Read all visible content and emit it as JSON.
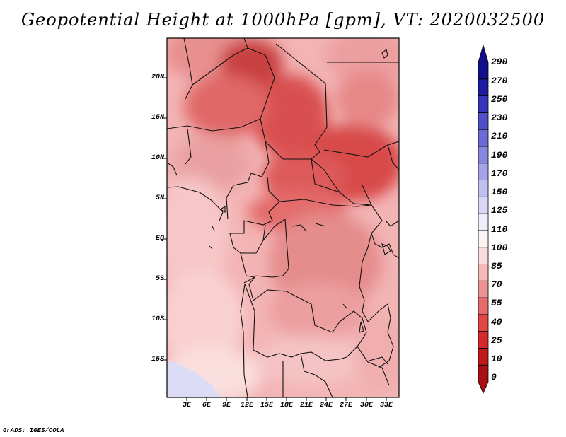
{
  "title": "Geopotential Height at 1000hPa [gpm], VT: 2020032500",
  "map": {
    "y_axis_labels": [
      "20N",
      "15N",
      "10N",
      "5N",
      "EQ",
      "5S",
      "10S",
      "15S"
    ],
    "x_axis_labels": [
      "3E",
      "6E",
      "9E",
      "12E",
      "15E",
      "18E",
      "21E",
      "24E",
      "27E",
      "30E",
      "33E"
    ],
    "lat_range": [
      -19,
      24
    ],
    "lon_range": [
      0,
      35
    ]
  },
  "colorbar": {
    "labels": [
      "290",
      "270",
      "250",
      "230",
      "210",
      "190",
      "170",
      "150",
      "125",
      "110",
      "100",
      "85",
      "70",
      "55",
      "40",
      "25",
      "10",
      "0"
    ],
    "colors": [
      "#a80f12",
      "#c1181a",
      "#d52a2a",
      "#e04646",
      "#e66a6a",
      "#ee9393",
      "#f6b9b9",
      "#fbdcdc",
      "#fff3f3",
      "#eeeefc",
      "#d8d8f6",
      "#c0c0f0",
      "#a3a3ea",
      "#8787df",
      "#6b6bd6",
      "#4f4fca",
      "#3535b8",
      "#1c1ca3",
      "#10108c"
    ]
  },
  "credit": "GrADS: IGES/COLA"
}
